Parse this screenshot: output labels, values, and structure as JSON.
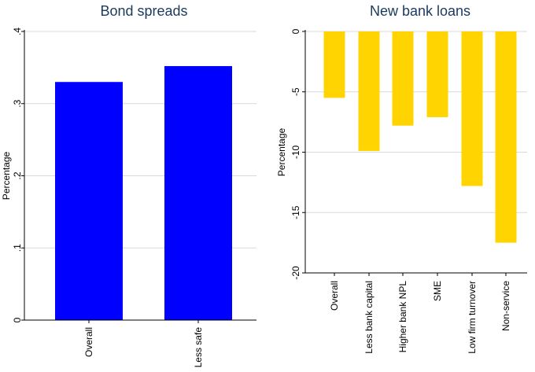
{
  "chart_data": [
    {
      "type": "bar",
      "title": "Bond spreads",
      "ylabel": "Percentage",
      "xlabel": "",
      "categories": [
        "Overall",
        "Less safe"
      ],
      "values": [
        0.33,
        0.352
      ],
      "ylim": [
        0,
        0.4
      ],
      "yticks": [
        0,
        0.1,
        0.2,
        0.3,
        0.4
      ],
      "ytick_labels": [
        "0",
        ".1",
        ".2",
        ".3",
        ".4"
      ],
      "color": "#0000ff",
      "grid": true
    },
    {
      "type": "bar",
      "title": "New bank loans",
      "ylabel": "Percentage",
      "xlabel": "",
      "categories": [
        "Overall",
        "Less bank capital",
        "Higher bank NPL",
        "SME",
        "Low firm turnover",
        "Non-service"
      ],
      "values": [
        -5.5,
        -9.9,
        -7.8,
        -7.1,
        -12.8,
        -17.5
      ],
      "ylim": [
        -20,
        0
      ],
      "yticks": [
        0,
        -5,
        -10,
        -15,
        -20
      ],
      "ytick_labels": [
        "0",
        "-5",
        "-10",
        "-15",
        "-20"
      ],
      "color": "#ffd400",
      "grid": true
    }
  ]
}
